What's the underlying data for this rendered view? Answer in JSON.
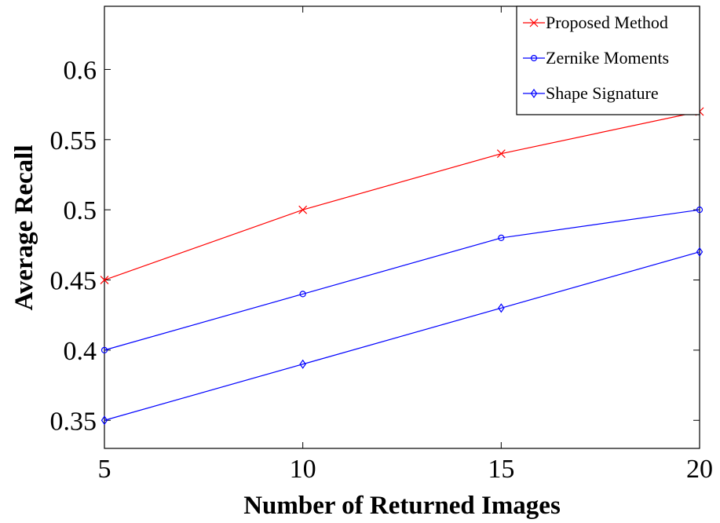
{
  "chart_data": {
    "type": "line",
    "xlabel": "Number of Returned Images",
    "ylabel": "Average Recall",
    "x": [
      5,
      10,
      15,
      20
    ],
    "xlim": [
      5,
      20
    ],
    "ylim": [
      0.33,
      0.645
    ],
    "xticks": [
      5,
      10,
      15,
      20
    ],
    "xtick_labels": [
      "5",
      "10",
      "15",
      "20"
    ],
    "yticks": [
      0.35,
      0.4,
      0.45,
      0.5,
      0.55,
      0.6
    ],
    "ytick_labels": [
      "0.35",
      "0.4",
      "0.45",
      "0.5",
      "0.55",
      "0.6"
    ],
    "grid": false,
    "legend_position": "top-right",
    "series": [
      {
        "name": "Proposed Method",
        "values": [
          0.45,
          0.5,
          0.54,
          0.57
        ],
        "color": "#ff0000",
        "marker": "x"
      },
      {
        "name": "Zernike Moments",
        "values": [
          0.4,
          0.44,
          0.48,
          0.5
        ],
        "color": "#0000ff",
        "marker": "circle"
      },
      {
        "name": "Shape Signature",
        "values": [
          0.35,
          0.39,
          0.43,
          0.47
        ],
        "color": "#0000ff",
        "marker": "diamond"
      }
    ]
  }
}
